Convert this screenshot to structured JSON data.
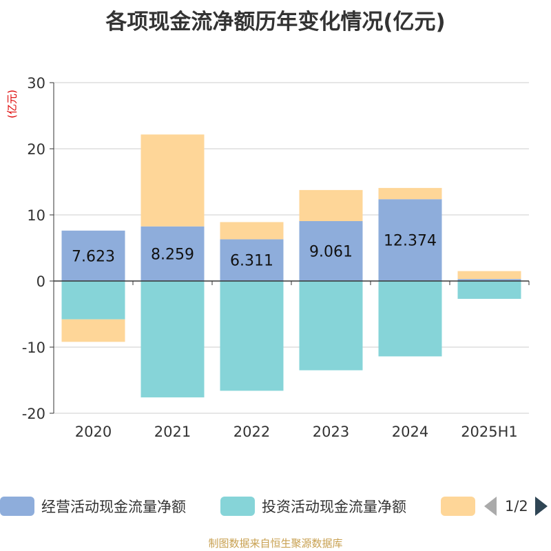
{
  "title": "各项现金流净额历年变化情况(亿元)",
  "unit_label": "(亿元)",
  "source": "制图数据来自恒生聚源数据库",
  "pager": {
    "text": "1/2"
  },
  "legend": [
    {
      "name": "经营活动现金流量净额",
      "color": "#8eaddb"
    },
    {
      "name": "投资活动现金流量净额",
      "color": "#86d4d8"
    },
    {
      "name": "",
      "color": "#fed698"
    }
  ],
  "chart_data": {
    "type": "bar",
    "stacked": true,
    "categories": [
      "2020",
      "2021",
      "2022",
      "2023",
      "2024",
      "2025H1"
    ],
    "ylim": [
      -20,
      30
    ],
    "yticks": [
      30,
      20,
      10,
      0,
      -10,
      -20
    ],
    "grid": true,
    "legend_position": "bottom",
    "series": [
      {
        "name": "经营活动现金流量净额",
        "color": "#8eaddb",
        "values": [
          7.623,
          8.259,
          6.311,
          9.061,
          12.374,
          0.3
        ],
        "labels": [
          "7.623",
          "8.259",
          "6.311",
          "9.061",
          "12.374",
          ""
        ]
      },
      {
        "name": "投资活动现金流量净额",
        "color": "#86d4d8",
        "values": [
          -5.8,
          -17.6,
          -16.6,
          -13.5,
          -11.4,
          -2.7
        ]
      },
      {
        "name": "",
        "color": "#fed698",
        "values": [
          -3.4,
          13.9,
          2.6,
          4.7,
          1.7,
          1.2
        ]
      }
    ]
  }
}
